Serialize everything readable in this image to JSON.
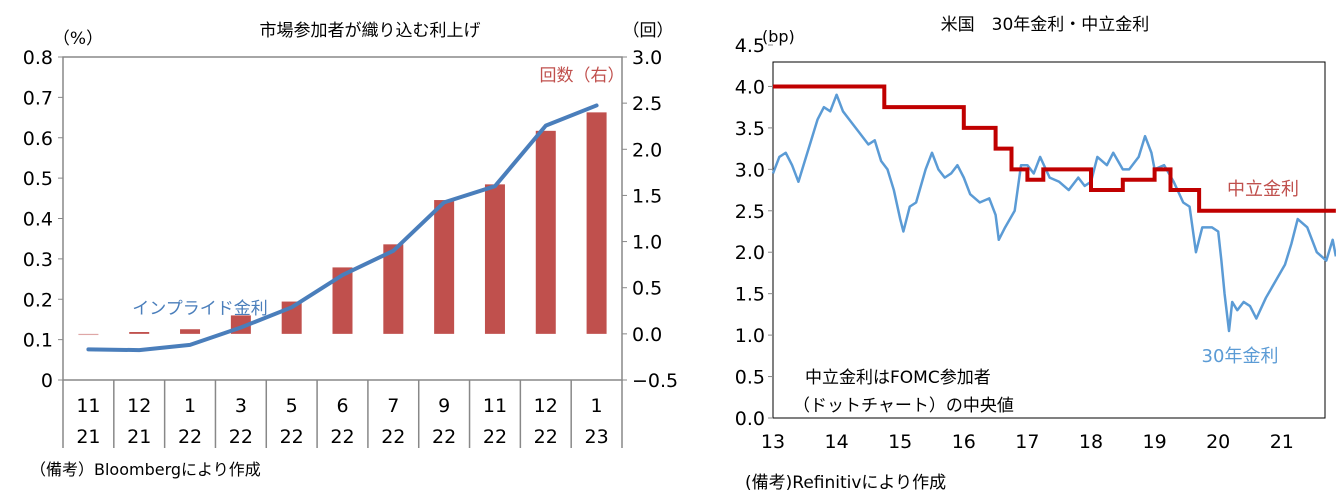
{
  "chart_data": [
    {
      "type": "bar+line",
      "title": "市場参加者が織り込む利上げ",
      "left_unit": "（%）",
      "right_unit": "（回）",
      "categories_month": [
        "11",
        "12",
        "1",
        "3",
        "5",
        "6",
        "7",
        "9",
        "11",
        "12",
        "1"
      ],
      "categories_year": [
        "21",
        "21",
        "22",
        "22",
        "22",
        "22",
        "22",
        "22",
        "22",
        "22",
        "23"
      ],
      "left_ylim": [
        0,
        0.8
      ],
      "left_ticks": [
        "0",
        "0.1",
        "0.2",
        "0.3",
        "0.4",
        "0.5",
        "0.6",
        "0.7",
        "0.8"
      ],
      "right_ylim": [
        -0.5,
        3.0
      ],
      "right_ticks": [
        "−0.5",
        "0.0",
        "0.5",
        "1.0",
        "1.5",
        "2.0",
        "2.5",
        "3.0"
      ],
      "series": [
        {
          "name": "回数（右）",
          "type": "bar",
          "axis": "right",
          "color": "#c0504d",
          "values": [
            0.0,
            0.02,
            0.05,
            0.2,
            0.35,
            0.72,
            0.97,
            1.45,
            1.62,
            2.2,
            2.4
          ]
        },
        {
          "name": "インプライド金利",
          "type": "line",
          "axis": "left",
          "color": "#4a7ebb",
          "values": [
            0.076,
            0.074,
            0.087,
            0.13,
            0.18,
            0.26,
            0.32,
            0.44,
            0.48,
            0.63,
            0.68
          ]
        }
      ],
      "footnote": "（備考）Bloombergにより作成"
    },
    {
      "type": "line",
      "title": "米国　30年金利・中立金利",
      "ylabel": "(bp)",
      "ylim": [
        0,
        4.5
      ],
      "y_ticks": [
        "0.0",
        "0.5",
        "1.0",
        "1.5",
        "2.0",
        "2.5",
        "3.0",
        "3.5",
        "4.0",
        "4.5"
      ],
      "xlim": [
        13,
        21.85
      ],
      "x_ticks": [
        "13",
        "14",
        "15",
        "16",
        "17",
        "18",
        "19",
        "20",
        "21"
      ],
      "series": [
        {
          "name": "中立金利",
          "color": "#c00000",
          "type": "step",
          "points": [
            [
              13,
              4.0
            ],
            [
              14.75,
              3.75
            ],
            [
              16.0,
              3.5
            ],
            [
              16.5,
              3.25
            ],
            [
              16.75,
              3.0
            ],
            [
              17.0,
              2.875
            ],
            [
              17.25,
              3.0
            ],
            [
              18.0,
              2.75
            ],
            [
              18.5,
              2.875
            ],
            [
              19.0,
              3.0
            ],
            [
              19.25,
              2.75
            ],
            [
              19.7,
              2.5
            ],
            [
              21.85,
              2.5
            ]
          ]
        },
        {
          "name": "30年金利",
          "color": "#5b9bd5",
          "type": "line",
          "points": [
            [
              13.0,
              2.95
            ],
            [
              13.1,
              3.15
            ],
            [
              13.2,
              3.2
            ],
            [
              13.3,
              3.05
            ],
            [
              13.4,
              2.85
            ],
            [
              13.5,
              3.1
            ],
            [
              13.6,
              3.35
            ],
            [
              13.7,
              3.6
            ],
            [
              13.8,
              3.75
            ],
            [
              13.9,
              3.7
            ],
            [
              14.0,
              3.9
            ],
            [
              14.1,
              3.7
            ],
            [
              14.2,
              3.6
            ],
            [
              14.35,
              3.45
            ],
            [
              14.5,
              3.3
            ],
            [
              14.6,
              3.35
            ],
            [
              14.7,
              3.1
            ],
            [
              14.8,
              3.0
            ],
            [
              14.9,
              2.75
            ],
            [
              15.0,
              2.4
            ],
            [
              15.05,
              2.25
            ],
            [
              15.15,
              2.55
            ],
            [
              15.25,
              2.6
            ],
            [
              15.4,
              3.0
            ],
            [
              15.5,
              3.2
            ],
            [
              15.6,
              3.0
            ],
            [
              15.7,
              2.9
            ],
            [
              15.8,
              2.95
            ],
            [
              15.9,
              3.05
            ],
            [
              16.0,
              2.9
            ],
            [
              16.1,
              2.7
            ],
            [
              16.25,
              2.6
            ],
            [
              16.4,
              2.65
            ],
            [
              16.5,
              2.45
            ],
            [
              16.55,
              2.15
            ],
            [
              16.65,
              2.3
            ],
            [
              16.8,
              2.5
            ],
            [
              16.9,
              3.05
            ],
            [
              17.0,
              3.05
            ],
            [
              17.1,
              2.95
            ],
            [
              17.2,
              3.15
            ],
            [
              17.35,
              2.9
            ],
            [
              17.5,
              2.85
            ],
            [
              17.65,
              2.75
            ],
            [
              17.8,
              2.9
            ],
            [
              17.9,
              2.8
            ],
            [
              18.0,
              2.85
            ],
            [
              18.1,
              3.15
            ],
            [
              18.25,
              3.05
            ],
            [
              18.35,
              3.2
            ],
            [
              18.5,
              3.0
            ],
            [
              18.6,
              3.0
            ],
            [
              18.75,
              3.15
            ],
            [
              18.85,
              3.4
            ],
            [
              18.95,
              3.2
            ],
            [
              19.0,
              3.0
            ],
            [
              19.15,
              3.05
            ],
            [
              19.3,
              2.85
            ],
            [
              19.45,
              2.6
            ],
            [
              19.55,
              2.55
            ],
            [
              19.65,
              2.0
            ],
            [
              19.75,
              2.3
            ],
            [
              19.9,
              2.3
            ],
            [
              20.0,
              2.25
            ],
            [
              20.05,
              1.9
            ],
            [
              20.1,
              1.5
            ],
            [
              20.17,
              1.05
            ],
            [
              20.22,
              1.4
            ],
            [
              20.3,
              1.3
            ],
            [
              20.4,
              1.4
            ],
            [
              20.5,
              1.35
            ],
            [
              20.6,
              1.2
            ],
            [
              20.75,
              1.45
            ],
            [
              20.9,
              1.65
            ],
            [
              21.05,
              1.85
            ],
            [
              21.15,
              2.1
            ],
            [
              21.25,
              2.4
            ],
            [
              21.4,
              2.3
            ],
            [
              21.55,
              2.0
            ],
            [
              21.7,
              1.9
            ],
            [
              21.8,
              2.15
            ],
            [
              21.85,
              1.95
            ]
          ]
        }
      ],
      "labels": {
        "neutral": "中立金利",
        "yield30": "30年金利"
      },
      "annotation": [
        "中立金利はFOMC参加者",
        "（ドットチャート）の中央値"
      ],
      "footnote": "(備考)Refinitivにより作成"
    }
  ]
}
